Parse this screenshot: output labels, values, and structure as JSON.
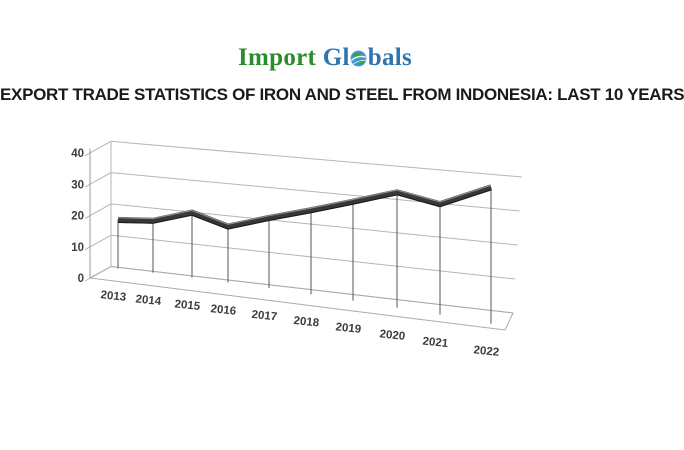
{
  "logo": {
    "word1": "Import",
    "word2_pre": "Gl",
    "word2_post": "bals",
    "colors": {
      "word1": "#2e8b2e",
      "word2": "#2e74ae",
      "globe_sea": "#3e97cf",
      "globe_land": "#3aa13a"
    }
  },
  "title": "EXPORT TRADE STATISTICS OF IRON AND STEEL FROM INDONESIA: LAST 10 YEARS",
  "chart_data": {
    "type": "line",
    "style": "3d-ribbon",
    "categories": [
      "2013",
      "2014",
      "2015",
      "2016",
      "2017",
      "2018",
      "2019",
      "2020",
      "2021",
      "2022"
    ],
    "values": [
      18,
      18,
      21,
      17,
      20,
      22.5,
      25,
      27.5,
      25,
      29
    ],
    "title": "",
    "xlabel": "",
    "ylabel": "",
    "ylim": [
      0,
      40
    ],
    "yticks": [
      0,
      10,
      20,
      30,
      40
    ],
    "grid": true,
    "legend": false,
    "series_color": "#383838",
    "gridline_color": "#b5b5b5",
    "axis_color": "#999999",
    "droplines_color": "#555555"
  }
}
